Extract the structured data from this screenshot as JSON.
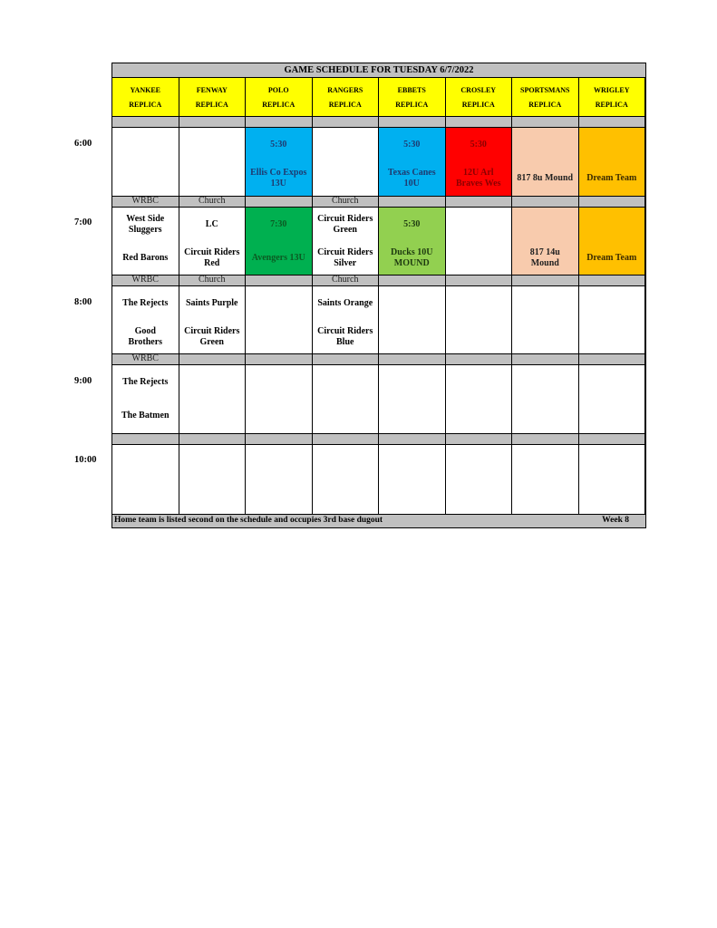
{
  "title": "GAME SCHEDULE FOR TUESDAY 6/7/2022",
  "fields": [
    {
      "name": "YANKEE",
      "sub": "REPLICA"
    },
    {
      "name": "FENWAY",
      "sub": "REPLICA"
    },
    {
      "name": "POLO",
      "sub": "REPLICA"
    },
    {
      "name": "RANGERS",
      "sub": "REPLICA"
    },
    {
      "name": "EBBETS",
      "sub": "REPLICA"
    },
    {
      "name": "CROSLEY",
      "sub": "REPLICA"
    },
    {
      "name": "SPORTSMANS",
      "sub": "REPLICA"
    },
    {
      "name": "WRIGLEY",
      "sub": "REPLICA"
    }
  ],
  "times": [
    "6:00",
    "7:00",
    "8:00",
    "9:00",
    "10:00"
  ],
  "colors": {
    "header": "#ffff00",
    "gray": "#c0c0c0",
    "blue": "#00b0f0",
    "red": "#ff0000",
    "peach": "#f8cbad",
    "orange": "#ffc000",
    "green": "#00b050",
    "lightgreen": "#92d050"
  },
  "gap_labels": [
    [
      "",
      "",
      "",
      "",
      "",
      "",
      "",
      ""
    ],
    [
      "WRBC",
      "Church",
      "",
      "Church",
      "",
      "",
      "",
      ""
    ],
    [
      "WRBC",
      "Church",
      "",
      "Church",
      "",
      "",
      "",
      ""
    ],
    [
      "WRBC",
      "",
      "",
      "",
      "",
      "",
      "",
      ""
    ],
    [
      "",
      "",
      "",
      "",
      "",
      "",
      "",
      ""
    ]
  ],
  "slots": [
    [
      {
        "top": "",
        "bottom": ""
      },
      {
        "top": "",
        "bottom": ""
      },
      {
        "top": "5:30",
        "bottom": "Ellis Co Expos\n13U",
        "bg": "#00b0f0",
        "fg": "#1f3a70"
      },
      {
        "top": "",
        "bottom": ""
      },
      {
        "top": "5:30",
        "bottom": "Texas Canes\n10U",
        "bg": "#00b0f0",
        "fg": "#1f3a70"
      },
      {
        "top": "5:30",
        "bottom": "12U Arl\nBraves Wes",
        "bg": "#ff0000",
        "fg": "#8b0000"
      },
      {
        "top": "",
        "bottom": "817 8u Mound",
        "bg": "#f8cbad",
        "fg": "#222"
      },
      {
        "top": "",
        "bottom": "Dream Team",
        "bg": "#ffc000",
        "fg": "#3a2a00"
      }
    ],
    [
      {
        "top": "West Side\nSluggers",
        "bottom": "Red Barons"
      },
      {
        "top": "LC",
        "bottom": "Circuit Riders\nRed"
      },
      {
        "top": "7:30",
        "bottom": "Avengers 13U",
        "bg": "#00b050",
        "fg": "#0b5a22"
      },
      {
        "top": "Circuit Riders\nGreen",
        "bottom": "Circuit Riders\nSilver"
      },
      {
        "top": "5:30",
        "bottom": "Ducks 10U\nMOUND",
        "bg": "#92d050",
        "fg": "#1e3a10"
      },
      {
        "top": "",
        "bottom": ""
      },
      {
        "top": "",
        "bottom": "817 14u\nMound",
        "bg": "#f8cbad",
        "fg": "#222"
      },
      {
        "top": "",
        "bottom": "Dream Team",
        "bg": "#ffc000",
        "fg": "#3a2a00"
      }
    ],
    [
      {
        "top": "The Rejects",
        "bottom": "Good\nBrothers"
      },
      {
        "top": "Saints Purple",
        "bottom": "Circuit Riders\nGreen"
      },
      {
        "top": "",
        "bottom": ""
      },
      {
        "top": "Saints Orange",
        "bottom": "Circuit Riders\nBlue"
      },
      {
        "top": "",
        "bottom": ""
      },
      {
        "top": "",
        "bottom": ""
      },
      {
        "top": "",
        "bottom": ""
      },
      {
        "top": "",
        "bottom": ""
      }
    ],
    [
      {
        "top": "The Rejects",
        "bottom": "The Batmen"
      },
      {
        "top": "",
        "bottom": ""
      },
      {
        "top": "",
        "bottom": ""
      },
      {
        "top": "",
        "bottom": ""
      },
      {
        "top": "",
        "bottom": ""
      },
      {
        "top": "",
        "bottom": ""
      },
      {
        "top": "",
        "bottom": ""
      },
      {
        "top": "",
        "bottom": ""
      }
    ],
    [
      {
        "top": "",
        "bottom": ""
      },
      {
        "top": "",
        "bottom": ""
      },
      {
        "top": "",
        "bottom": ""
      },
      {
        "top": "",
        "bottom": ""
      },
      {
        "top": "",
        "bottom": ""
      },
      {
        "top": "",
        "bottom": ""
      },
      {
        "top": "",
        "bottom": ""
      },
      {
        "top": "",
        "bottom": ""
      }
    ]
  ],
  "footer": {
    "note": "Home team is listed second on the schedule and occupies 3rd base dugout",
    "week": "Week 8"
  }
}
